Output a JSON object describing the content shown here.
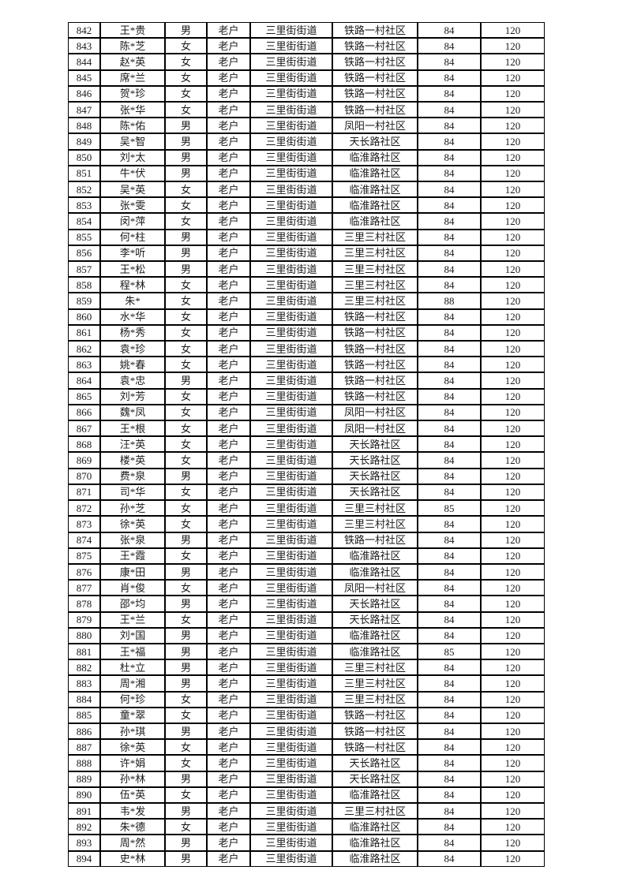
{
  "page": {
    "background_color": "#ffffff",
    "border_color": "#000000",
    "text_color": "#1a1a1a"
  },
  "table": {
    "column_semantics": [
      "row-number",
      "name",
      "gender",
      "household-type",
      "street",
      "community",
      "age",
      "amount"
    ],
    "rows": [
      [
        "842",
        "王*贵",
        "男",
        "老户",
        "三里街街道",
        "铁路一村社区",
        "84",
        "120"
      ],
      [
        "843",
        "陈*芝",
        "女",
        "老户",
        "三里街街道",
        "铁路一村社区",
        "84",
        "120"
      ],
      [
        "844",
        "赵*英",
        "女",
        "老户",
        "三里街街道",
        "铁路一村社区",
        "84",
        "120"
      ],
      [
        "845",
        "席*兰",
        "女",
        "老户",
        "三里街街道",
        "铁路一村社区",
        "84",
        "120"
      ],
      [
        "846",
        "贺*珍",
        "女",
        "老户",
        "三里街街道",
        "铁路一村社区",
        "84",
        "120"
      ],
      [
        "847",
        "张*华",
        "女",
        "老户",
        "三里街街道",
        "铁路一村社区",
        "84",
        "120"
      ],
      [
        "848",
        "陈*佑",
        "男",
        "老户",
        "三里街街道",
        "凤阳一村社区",
        "84",
        "120"
      ],
      [
        "849",
        "吴*智",
        "男",
        "老户",
        "三里街街道",
        "天长路社区",
        "84",
        "120"
      ],
      [
        "850",
        "刘*太",
        "男",
        "老户",
        "三里街街道",
        "临淮路社区",
        "84",
        "120"
      ],
      [
        "851",
        "牛*伏",
        "男",
        "老户",
        "三里街街道",
        "临淮路社区",
        "84",
        "120"
      ],
      [
        "852",
        "吴*英",
        "女",
        "老户",
        "三里街街道",
        "临淮路社区",
        "84",
        "120"
      ],
      [
        "853",
        "张*雯",
        "女",
        "老户",
        "三里街街道",
        "临淮路社区",
        "84",
        "120"
      ],
      [
        "854",
        "闵*萍",
        "女",
        "老户",
        "三里街街道",
        "临淮路社区",
        "84",
        "120"
      ],
      [
        "855",
        "何*柱",
        "男",
        "老户",
        "三里街街道",
        "三里三村社区",
        "84",
        "120"
      ],
      [
        "856",
        "李*听",
        "男",
        "老户",
        "三里街街道",
        "三里三村社区",
        "84",
        "120"
      ],
      [
        "857",
        "王*松",
        "男",
        "老户",
        "三里街街道",
        "三里三村社区",
        "84",
        "120"
      ],
      [
        "858",
        "程*林",
        "女",
        "老户",
        "三里街街道",
        "三里三村社区",
        "84",
        "120"
      ],
      [
        "859",
        "朱*",
        "女",
        "老户",
        "三里街街道",
        "三里三村社区",
        "88",
        "120"
      ],
      [
        "860",
        "水*华",
        "女",
        "老户",
        "三里街街道",
        "铁路一村社区",
        "84",
        "120"
      ],
      [
        "861",
        "杨*秀",
        "女",
        "老户",
        "三里街街道",
        "铁路一村社区",
        "84",
        "120"
      ],
      [
        "862",
        "袁*珍",
        "女",
        "老户",
        "三里街街道",
        "铁路一村社区",
        "84",
        "120"
      ],
      [
        "863",
        "姚*春",
        "女",
        "老户",
        "三里街街道",
        "铁路一村社区",
        "84",
        "120"
      ],
      [
        "864",
        "袁*忠",
        "男",
        "老户",
        "三里街街道",
        "铁路一村社区",
        "84",
        "120"
      ],
      [
        "865",
        "刘*芳",
        "女",
        "老户",
        "三里街街道",
        "铁路一村社区",
        "84",
        "120"
      ],
      [
        "866",
        "魏*凤",
        "女",
        "老户",
        "三里街街道",
        "凤阳一村社区",
        "84",
        "120"
      ],
      [
        "867",
        "王*根",
        "女",
        "老户",
        "三里街街道",
        "凤阳一村社区",
        "84",
        "120"
      ],
      [
        "868",
        "汪*英",
        "女",
        "老户",
        "三里街街道",
        "天长路社区",
        "84",
        "120"
      ],
      [
        "869",
        "楼*英",
        "女",
        "老户",
        "三里街街道",
        "天长路社区",
        "84",
        "120"
      ],
      [
        "870",
        "费*泉",
        "男",
        "老户",
        "三里街街道",
        "天长路社区",
        "84",
        "120"
      ],
      [
        "871",
        "司*华",
        "女",
        "老户",
        "三里街街道",
        "天长路社区",
        "84",
        "120"
      ],
      [
        "872",
        "孙*芝",
        "女",
        "老户",
        "三里街街道",
        "三里三村社区",
        "85",
        "120"
      ],
      [
        "873",
        "徐*英",
        "女",
        "老户",
        "三里街街道",
        "三里三村社区",
        "84",
        "120"
      ],
      [
        "874",
        "张*泉",
        "男",
        "老户",
        "三里街街道",
        "铁路一村社区",
        "84",
        "120"
      ],
      [
        "875",
        "王*霞",
        "女",
        "老户",
        "三里街街道",
        "临淮路社区",
        "84",
        "120"
      ],
      [
        "876",
        "康*田",
        "男",
        "老户",
        "三里街街道",
        "临淮路社区",
        "84",
        "120"
      ],
      [
        "877",
        "肖*俊",
        "女",
        "老户",
        "三里街街道",
        "凤阳一村社区",
        "84",
        "120"
      ],
      [
        "878",
        "邵*均",
        "男",
        "老户",
        "三里街街道",
        "天长路社区",
        "84",
        "120"
      ],
      [
        "879",
        "王*兰",
        "女",
        "老户",
        "三里街街道",
        "天长路社区",
        "84",
        "120"
      ],
      [
        "880",
        "刘*国",
        "男",
        "老户",
        "三里街街道",
        "临淮路社区",
        "84",
        "120"
      ],
      [
        "881",
        "王*福",
        "男",
        "老户",
        "三里街街道",
        "临淮路社区",
        "85",
        "120"
      ],
      [
        "882",
        "杜*立",
        "男",
        "老户",
        "三里街街道",
        "三里三村社区",
        "84",
        "120"
      ],
      [
        "883",
        "周*湘",
        "男",
        "老户",
        "三里街街道",
        "三里三村社区",
        "84",
        "120"
      ],
      [
        "884",
        "何*珍",
        "女",
        "老户",
        "三里街街道",
        "三里三村社区",
        "84",
        "120"
      ],
      [
        "885",
        "童*翠",
        "女",
        "老户",
        "三里街街道",
        "铁路一村社区",
        "84",
        "120"
      ],
      [
        "886",
        "孙*琪",
        "男",
        "老户",
        "三里街街道",
        "铁路一村社区",
        "84",
        "120"
      ],
      [
        "887",
        "徐*英",
        "女",
        "老户",
        "三里街街道",
        "铁路一村社区",
        "84",
        "120"
      ],
      [
        "888",
        "许*娟",
        "女",
        "老户",
        "三里街街道",
        "天长路社区",
        "84",
        "120"
      ],
      [
        "889",
        "孙*林",
        "男",
        "老户",
        "三里街街道",
        "天长路社区",
        "84",
        "120"
      ],
      [
        "890",
        "伍*英",
        "女",
        "老户",
        "三里街街道",
        "临淮路社区",
        "84",
        "120"
      ],
      [
        "891",
        "韦*发",
        "男",
        "老户",
        "三里街街道",
        "三里三村社区",
        "84",
        "120"
      ],
      [
        "892",
        "朱*德",
        "女",
        "老户",
        "三里街街道",
        "临淮路社区",
        "84",
        "120"
      ],
      [
        "893",
        "周*然",
        "男",
        "老户",
        "三里街街道",
        "临淮路社区",
        "84",
        "120"
      ],
      [
        "894",
        "史*林",
        "男",
        "老户",
        "三里街街道",
        "临淮路社区",
        "84",
        "120"
      ]
    ]
  }
}
